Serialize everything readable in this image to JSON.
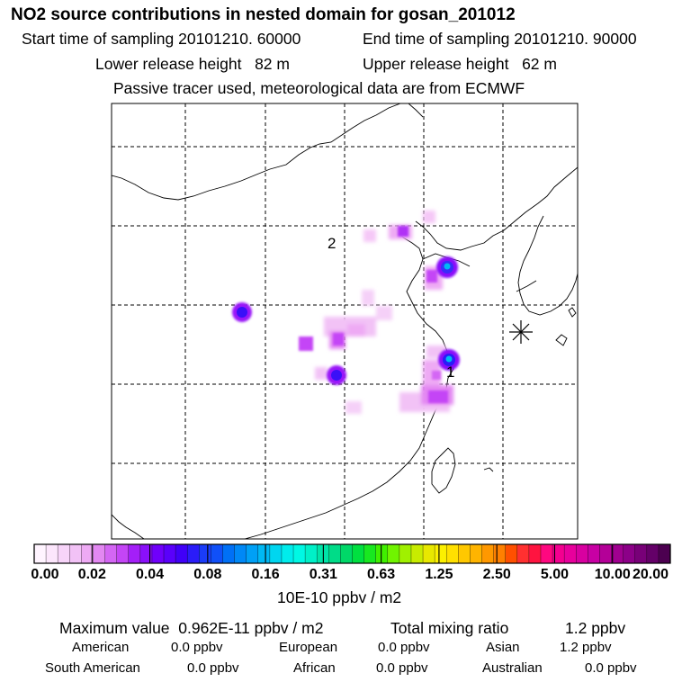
{
  "title": "NO2 source contributions in nested domain for gosan_201012",
  "sampling": {
    "start_label": "Start time of sampling",
    "start_value": "20101210. 60000",
    "end_label": "End time of sampling",
    "end_value": "20101210. 90000"
  },
  "release": {
    "lower_label": "Lower release height",
    "lower_value": "82 m",
    "upper_label": "Upper release height",
    "upper_value": "62 m"
  },
  "note": "Passive tracer used, meteorological data are from ECMWF",
  "markers": {
    "label_2": "2",
    "label_1": "1"
  },
  "colorbar": {
    "tick_labels": [
      "0.00",
      "0.02",
      "0.04",
      "0.08",
      "0.16",
      "0.31",
      "0.63",
      "1.25",
      "2.50",
      "5.00",
      "10.00",
      "20.00"
    ],
    "unit": "10E-10 ppbv / m2",
    "colors": [
      "#fff4ff",
      "#fce6fc",
      "#f7d4f9",
      "#f2c2f6",
      "#eeaaf4",
      "#e388f2",
      "#d466f4",
      "#c445f6",
      "#a41ff8",
      "#8a10fa",
      "#7000fb",
      "#5a00fb",
      "#4000f8",
      "#2a1cf8",
      "#1a3cf8",
      "#1050f8",
      "#0070f6",
      "#0088f6",
      "#00a0f6",
      "#00b8f4",
      "#00d6f0",
      "#00ecec",
      "#00f8e4",
      "#00f0c8",
      "#00e4a8",
      "#00dc88",
      "#00d868",
      "#00e040",
      "#18e820",
      "#40f000",
      "#70f400",
      "#a0f000",
      "#c8ec00",
      "#e8e800",
      "#fcf000",
      "#ffe000",
      "#ffc800",
      "#ffb400",
      "#ff9800",
      "#ff8000",
      "#ff5000",
      "#ff3030",
      "#ff1440",
      "#ff0880",
      "#f40090",
      "#e8009c",
      "#d800a0",
      "#c800a4",
      "#b40098",
      "#a00090",
      "#8c0088",
      "#780078",
      "#640068",
      "#4c0050"
    ]
  },
  "summary": {
    "max_label": "Maximum value",
    "max_value": "0.962E-11 ppbv / m2",
    "total_label": "Total mixing ratio",
    "total_value": "1.2 ppbv"
  },
  "regions": [
    {
      "name": "American",
      "value": "0.0 ppbv"
    },
    {
      "name": "European",
      "value": "0.0 ppbv"
    },
    {
      "name": "Asian",
      "value": "1.2 ppbv"
    },
    {
      "name": "South American",
      "value": "0.0 ppbv"
    },
    {
      "name": "African",
      "value": "0.0 ppbv"
    },
    {
      "name": "Australian",
      "value": "0.0 ppbv"
    }
  ]
}
